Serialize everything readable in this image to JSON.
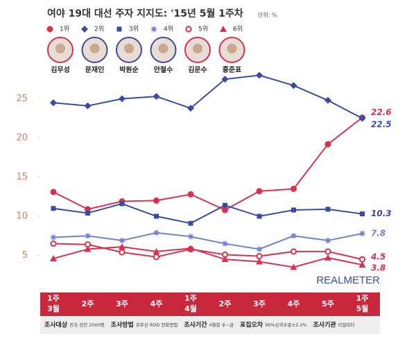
{
  "chart_data": {
    "type": "line",
    "title": "여야 19대 대선 주자 지지도: '15년 5월 1주차",
    "unit": "단위: %",
    "categories": [
      "1주",
      "2주",
      "3주",
      "4주",
      "1주",
      "2주",
      "3주",
      "4주",
      "5주",
      "1주"
    ],
    "months": [
      "3월",
      null,
      null,
      null,
      "4월",
      null,
      null,
      null,
      null,
      "5월"
    ],
    "ylim": [
      0,
      28.5
    ],
    "yticks": [
      5,
      10,
      15,
      20,
      25
    ],
    "grid": false,
    "series": [
      {
        "name": "1위",
        "candidate": "김무성",
        "color": "#d8304e",
        "marker": "circle",
        "values": [
          13.1,
          10.9,
          11.9,
          12.0,
          12.8,
          10.8,
          13.2,
          13.5,
          19.2,
          22.6
        ]
      },
      {
        "name": "2위",
        "candidate": "문재인",
        "color": "#3a4aa2",
        "marker": "diamond",
        "values": [
          24.5,
          24.1,
          25.0,
          25.3,
          23.8,
          27.5,
          28.0,
          26.7,
          24.8,
          22.5
        ]
      },
      {
        "name": "3위",
        "candidate": "박원순",
        "color": "#3a4aa2",
        "marker": "square",
        "values": [
          11.0,
          10.4,
          11.6,
          10.0,
          9.1,
          11.4,
          10.0,
          10.8,
          10.9,
          10.3
        ]
      },
      {
        "name": "4위",
        "candidate": "안철수",
        "color": "#6f80d4",
        "marker": "asterisk",
        "values": [
          7.3,
          7.5,
          6.9,
          7.9,
          7.4,
          6.5,
          5.8,
          7.5,
          6.9,
          7.8
        ]
      },
      {
        "name": "5위",
        "candidate": "김문수",
        "color": "#d8304e",
        "marker": "hollow-circle",
        "values": [
          6.5,
          6.4,
          5.4,
          4.8,
          5.8,
          5.1,
          4.9,
          5.5,
          5.5,
          4.5
        ]
      },
      {
        "name": "6위",
        "candidate": "홍준표",
        "color": "#d8304e",
        "marker": "triangle",
        "values": [
          4.6,
          5.8,
          6.1,
          5.5,
          5.9,
          4.5,
          4.2,
          3.5,
          4.7,
          3.8
        ]
      }
    ],
    "brand": "REALMETER",
    "footer": [
      {
        "label": "조사대상",
        "text": "전국 성인 2000명"
      },
      {
        "label": "조사방법",
        "text": "유무선 RDD 전화면접"
      },
      {
        "label": "조사기간",
        "text": "4월말 수~금"
      },
      {
        "label": "표집오차",
        "text": "95%신뢰수준±2.2%"
      },
      {
        "label": "조사기관",
        "text": "리얼미터"
      }
    ]
  }
}
